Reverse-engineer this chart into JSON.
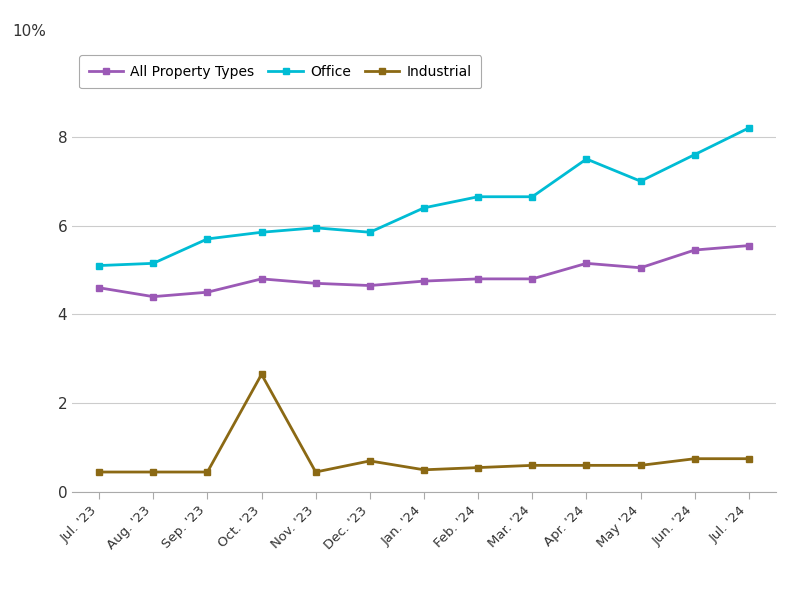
{
  "x_labels": [
    "Jul. '23",
    "Aug. '23",
    "Sep. '23",
    "Oct. '23",
    "Nov. '23",
    "Dec. '23",
    "Jan. '24",
    "Feb. '24",
    "Mar. '24",
    "Apr. '24",
    "May '24",
    "Jun. '24",
    "Jul. '24"
  ],
  "all_property_types": [
    4.6,
    4.4,
    4.5,
    4.8,
    4.7,
    4.65,
    4.75,
    4.8,
    4.8,
    5.15,
    5.05,
    5.45,
    5.55
  ],
  "office": [
    5.1,
    5.15,
    5.7,
    5.85,
    5.95,
    5.85,
    6.4,
    6.65,
    6.65,
    7.5,
    7.0,
    7.6,
    8.2
  ],
  "industrial": [
    0.45,
    0.45,
    0.45,
    2.65,
    0.45,
    0.7,
    0.5,
    0.55,
    0.6,
    0.6,
    0.6,
    0.75,
    0.75
  ],
  "all_color": "#9b59b6",
  "office_color": "#00bcd4",
  "industrial_color": "#8B6914",
  "background_color": "#ffffff",
  "grid_color": "#cccccc",
  "ylim": [
    0,
    10
  ],
  "yticks": [
    0,
    2,
    4,
    6,
    8
  ],
  "ytick_labels": [
    "0",
    "2",
    "4",
    "6",
    "8"
  ],
  "legend_labels": [
    "All Property Types",
    "Office",
    "Industrial"
  ],
  "marker": "s",
  "marker_size": 5,
  "linewidth": 2,
  "top_label": "10%"
}
